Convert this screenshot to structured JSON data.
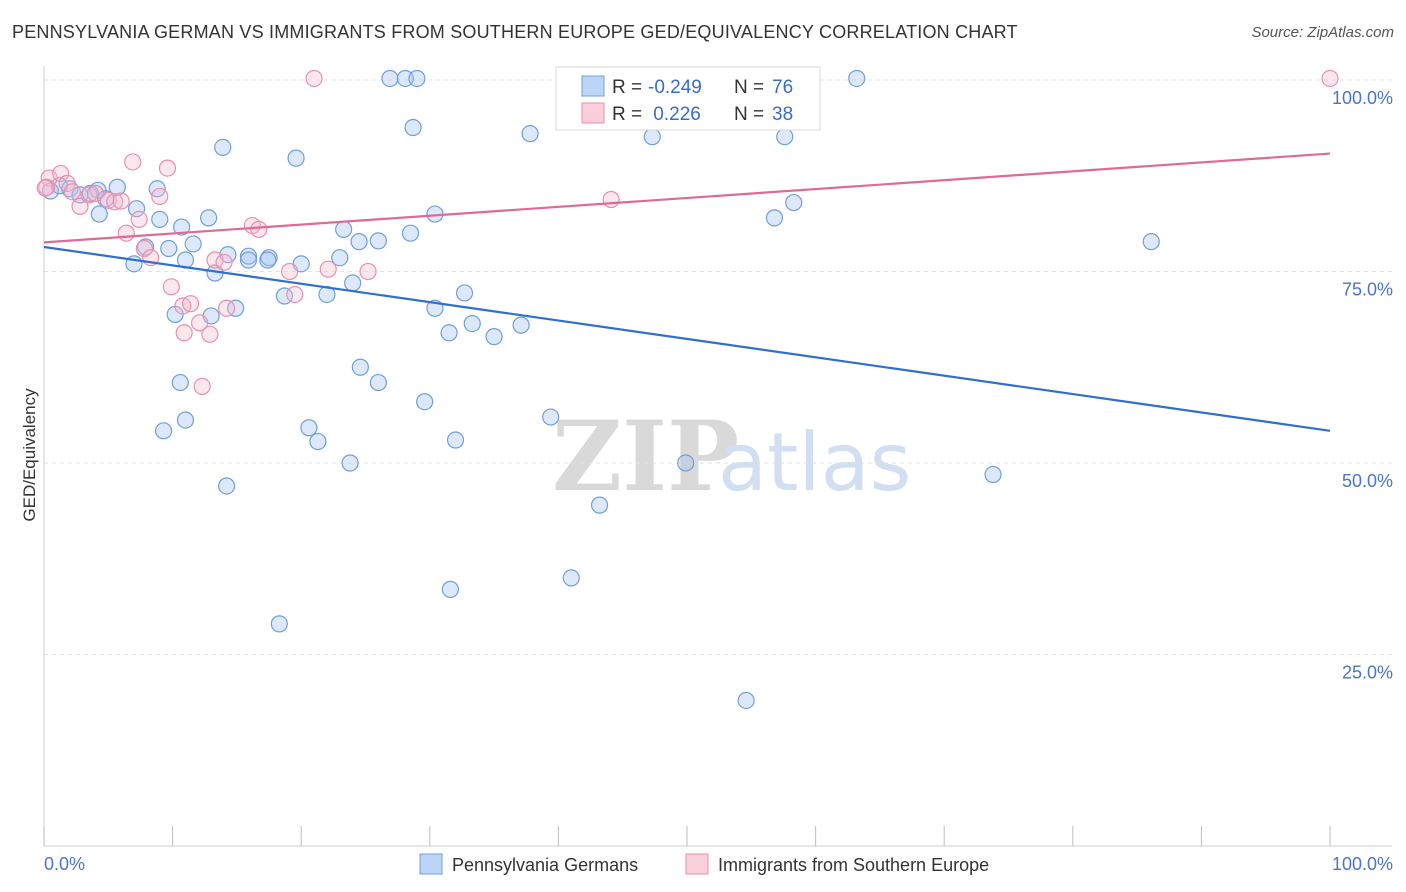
{
  "title": "PENNSYLVANIA GERMAN VS IMMIGRANTS FROM SOUTHERN EUROPE GED/EQUIVALENCY CORRELATION CHART",
  "source": "Source: ZipAtlas.com",
  "watermark": {
    "zip": "ZIP",
    "atlas": "atlas"
  },
  "stats": [
    {
      "r_label": "R =",
      "r_value": "-0.249",
      "n_label": "N =",
      "n_value": "76",
      "color": "#9ec1f0"
    },
    {
      "r_label": "R =",
      "r_value": " 0.226",
      "n_label": "N =",
      "n_value": "38",
      "color": "#f6b9cc"
    }
  ],
  "chart_data": {
    "type": "scatter",
    "title": "PENNSYLVANIA GERMAN VS IMMIGRANTS FROM SOUTHERN EUROPE GED/EQUIVALENCY CORRELATION CHART",
    "xlabel": "",
    "ylabel": "GED/Equivalency",
    "xlim": [
      0,
      100
    ],
    "ylim": [
      0,
      100
    ],
    "x_tick_labels": [
      "0.0%",
      "100.0%"
    ],
    "y_ticks": [
      25,
      50,
      75,
      100
    ],
    "y_tick_labels": [
      "25.0%",
      "50.0%",
      "75.0%",
      "100.0%"
    ],
    "grid": true,
    "legend_position": "bottom-center",
    "series": [
      {
        "name": "Pennsylvania Germans",
        "color": "#9ec1f0",
        "stroke": "#6f9fe0",
        "trend": {
          "x": [
            0,
            100
          ],
          "y": [
            78.2,
            54.2
          ],
          "color": "#2f6fd0"
        },
        "points": [
          [
            0.5,
            85.5
          ],
          [
            1.2,
            86.2
          ],
          [
            2.0,
            85.8
          ],
          [
            2.8,
            85.0
          ],
          [
            3.6,
            85.2
          ],
          [
            4.2,
            85.6
          ],
          [
            5.7,
            86.0
          ],
          [
            4.3,
            82.5
          ],
          [
            4.8,
            84.5
          ],
          [
            7.2,
            83.2
          ],
          [
            8.8,
            85.8
          ],
          [
            13.9,
            91.2
          ],
          [
            19.6,
            89.8
          ],
          [
            10.7,
            80.8
          ],
          [
            9.7,
            78.0
          ],
          [
            9.0,
            81.8
          ],
          [
            12.8,
            82.0
          ],
          [
            14.3,
            77.2
          ],
          [
            15.9,
            77.0
          ],
          [
            17.5,
            76.8
          ],
          [
            23.0,
            76.8
          ],
          [
            23.3,
            80.5
          ],
          [
            24.5,
            78.9
          ],
          [
            26.0,
            79.0
          ],
          [
            28.5,
            80.0
          ],
          [
            30.4,
            82.5
          ],
          [
            26.9,
            100.2
          ],
          [
            28.1,
            100.2
          ],
          [
            29.0,
            100.2
          ],
          [
            28.7,
            93.8
          ],
          [
            37.8,
            93.0
          ],
          [
            47.3,
            92.6
          ],
          [
            63.2,
            100.2
          ],
          [
            57.6,
            92.6
          ],
          [
            56.8,
            82.0
          ],
          [
            58.3,
            84.0
          ],
          [
            86.1,
            78.9
          ],
          [
            11.6,
            78.6
          ],
          [
            7.9,
            78.2
          ],
          [
            7.0,
            76.0
          ],
          [
            11.0,
            76.5
          ],
          [
            13.3,
            74.8
          ],
          [
            15.9,
            76.5
          ],
          [
            17.4,
            76.5
          ],
          [
            20.0,
            76.0
          ],
          [
            22.0,
            72.0
          ],
          [
            18.7,
            71.8
          ],
          [
            13.0,
            69.2
          ],
          [
            10.2,
            69.4
          ],
          [
            14.9,
            70.2
          ],
          [
            24.0,
            73.5
          ],
          [
            32.7,
            72.2
          ],
          [
            30.4,
            70.2
          ],
          [
            31.5,
            67.0
          ],
          [
            33.3,
            68.2
          ],
          [
            35.0,
            66.5
          ],
          [
            37.1,
            68.0
          ],
          [
            24.6,
            62.5
          ],
          [
            26.0,
            60.5
          ],
          [
            10.6,
            60.5
          ],
          [
            11.0,
            55.6
          ],
          [
            9.3,
            54.2
          ],
          [
            20.6,
            54.6
          ],
          [
            21.3,
            52.8
          ],
          [
            23.8,
            50.0
          ],
          [
            32.0,
            53.0
          ],
          [
            29.6,
            58.0
          ],
          [
            39.4,
            56.0
          ],
          [
            49.9,
            50.0
          ],
          [
            14.2,
            47.0
          ],
          [
            73.8,
            48.5
          ],
          [
            43.2,
            44.5
          ],
          [
            31.6,
            33.5
          ],
          [
            41.0,
            35.0
          ],
          [
            18.3,
            29.0
          ],
          [
            54.6,
            19.0
          ]
        ]
      },
      {
        "name": "Immigrants from Southern Europe",
        "color": "#f6b9cc",
        "stroke": "#ea8fad",
        "trend": {
          "x": [
            0,
            100
          ],
          "y": [
            78.8,
            90.4
          ],
          "color": "#e06a95"
        },
        "points": [
          [
            0.4,
            87.2
          ],
          [
            1.3,
            87.8
          ],
          [
            1.8,
            86.5
          ],
          [
            2.2,
            85.4
          ],
          [
            2.8,
            83.5
          ],
          [
            3.5,
            85.0
          ],
          [
            4.0,
            85.2
          ],
          [
            5.0,
            84.3
          ],
          [
            5.5,
            84.1
          ],
          [
            6.0,
            84.2
          ],
          [
            6.4,
            80.0
          ],
          [
            6.9,
            89.3
          ],
          [
            7.4,
            81.8
          ],
          [
            7.8,
            78.0
          ],
          [
            8.3,
            76.8
          ],
          [
            9.0,
            84.8
          ],
          [
            9.6,
            88.5
          ],
          [
            9.9,
            73.0
          ],
          [
            10.8,
            70.5
          ],
          [
            10.9,
            67.0
          ],
          [
            11.4,
            70.8
          ],
          [
            12.1,
            68.3
          ],
          [
            12.3,
            60.0
          ],
          [
            12.9,
            66.8
          ],
          [
            13.3,
            76.5
          ],
          [
            14.0,
            76.2
          ],
          [
            14.2,
            70.2
          ],
          [
            16.2,
            81.0
          ],
          [
            16.7,
            80.5
          ],
          [
            19.1,
            75.0
          ],
          [
            19.5,
            72.0
          ],
          [
            22.1,
            75.3
          ],
          [
            25.2,
            75.0
          ],
          [
            21.0,
            100.2
          ],
          [
            44.1,
            84.4
          ],
          [
            0.2,
            86.0
          ],
          [
            0.1,
            85.9
          ],
          [
            100.0,
            100.2
          ]
        ]
      }
    ]
  }
}
